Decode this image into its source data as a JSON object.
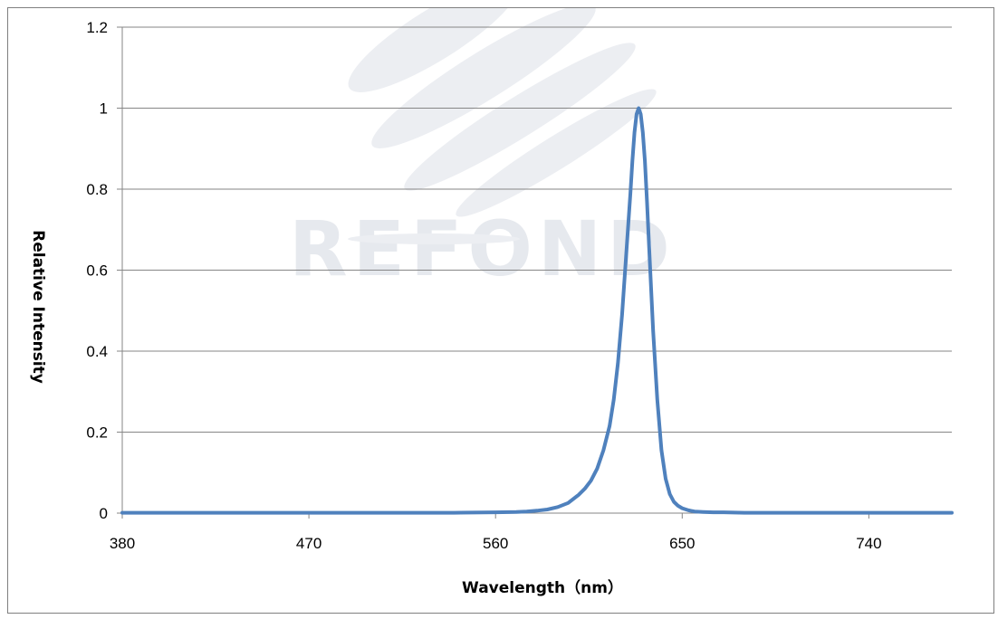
{
  "chart_data": {
    "type": "line",
    "title": "",
    "xlabel": "Wavelength（nm）",
    "ylabel": "Relative  Intensity",
    "xlim": [
      380,
      780
    ],
    "ylim": [
      0,
      1.2
    ],
    "x_ticks": [
      380,
      470,
      560,
      650,
      740
    ],
    "x_tick_labels": [
      "380",
      "470",
      "560",
      "650",
      "740"
    ],
    "y_ticks": [
      0,
      0.2,
      0.4,
      0.6,
      0.8,
      1,
      1.2
    ],
    "y_tick_labels": [
      "0",
      "0.2",
      "0.4",
      "0.6",
      "0.8",
      "1",
      "1.2"
    ],
    "grid": "horizontal",
    "legend": "none",
    "watermark": "REFOND",
    "colors": {
      "line": "#4f81bd",
      "grid": "#868686",
      "axis": "#868686",
      "watermark": "#e6e9ee"
    },
    "series": [
      {
        "color": "#4f81bd",
        "x": [
          380,
          420,
          460,
          500,
          540,
          560,
          570,
          575,
          580,
          585,
          590,
          595,
          600,
          603,
          606,
          609,
          612,
          615,
          617,
          619,
          621,
          623,
          625,
          626,
          627,
          628,
          629,
          630,
          631,
          632,
          633,
          634,
          636,
          638,
          640,
          642,
          644,
          646,
          648,
          650,
          653,
          656,
          660,
          665,
          670,
          680,
          700,
          740,
          780
        ],
        "y": [
          0.001,
          0.001,
          0.001,
          0.001,
          0.001,
          0.002,
          0.003,
          0.004,
          0.006,
          0.009,
          0.015,
          0.025,
          0.045,
          0.06,
          0.08,
          0.11,
          0.155,
          0.215,
          0.28,
          0.37,
          0.49,
          0.64,
          0.79,
          0.87,
          0.94,
          0.985,
          1.0,
          0.985,
          0.94,
          0.87,
          0.77,
          0.66,
          0.45,
          0.28,
          0.155,
          0.085,
          0.047,
          0.028,
          0.018,
          0.012,
          0.007,
          0.004,
          0.003,
          0.002,
          0.002,
          0.001,
          0.001,
          0.001,
          0.001
        ]
      }
    ]
  }
}
